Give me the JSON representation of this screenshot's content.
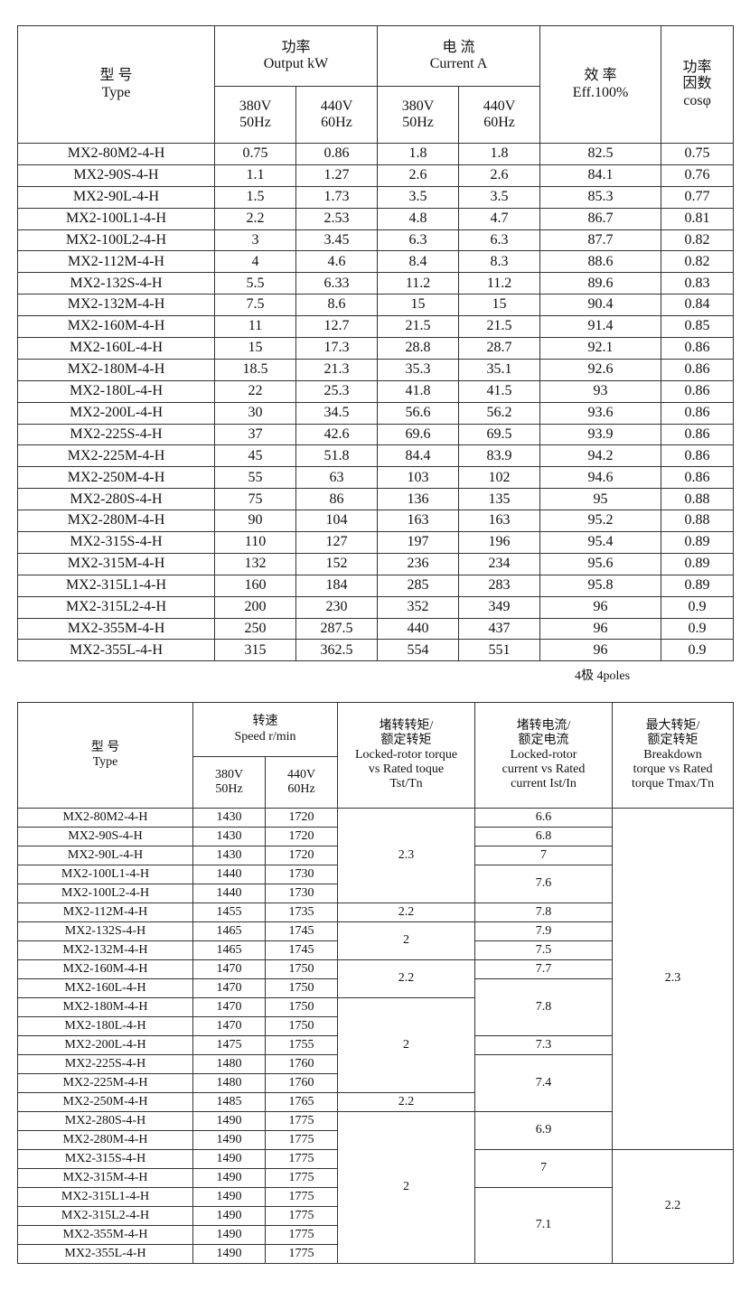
{
  "table1": {
    "headers": {
      "type": "型 号\nType",
      "output": "功率\nOutput  kW",
      "current": "电 流\nCurrent    A",
      "eff": "效 率\nEff.100%",
      "pf": "功率\n因数\ncosφ",
      "v380": "380V\n50Hz",
      "v440": "440V\n60Hz"
    },
    "rows": [
      [
        "MX2-80M2-4-H",
        "0.75",
        "0.86",
        "1.8",
        "1.8",
        "82.5",
        "0.75"
      ],
      [
        "MX2-90S-4-H",
        "1.1",
        "1.27",
        "2.6",
        "2.6",
        "84.1",
        "0.76"
      ],
      [
        "MX2-90L-4-H",
        "1.5",
        "1.73",
        "3.5",
        "3.5",
        "85.3",
        "0.77"
      ],
      [
        "MX2-100L1-4-H",
        "2.2",
        "2.53",
        "4.8",
        "4.7",
        "86.7",
        "0.81"
      ],
      [
        "MX2-100L2-4-H",
        "3",
        "3.45",
        "6.3",
        "6.3",
        "87.7",
        "0.82"
      ],
      [
        "MX2-112M-4-H",
        "4",
        "4.6",
        "8.4",
        "8.3",
        "88.6",
        "0.82"
      ],
      [
        "MX2-132S-4-H",
        "5.5",
        "6.33",
        "11.2",
        "11.2",
        "89.6",
        "0.83"
      ],
      [
        "MX2-132M-4-H",
        "7.5",
        "8.6",
        "15",
        "15",
        "90.4",
        "0.84"
      ],
      [
        "MX2-160M-4-H",
        "11",
        "12.7",
        "21.5",
        "21.5",
        "91.4",
        "0.85"
      ],
      [
        "MX2-160L-4-H",
        "15",
        "17.3",
        "28.8",
        "28.7",
        "92.1",
        "0.86"
      ],
      [
        "MX2-180M-4-H",
        "18.5",
        "21.3",
        "35.3",
        "35.1",
        "92.6",
        "0.86"
      ],
      [
        "MX2-180L-4-H",
        "22",
        "25.3",
        "41.8",
        "41.5",
        "93",
        "0.86"
      ],
      [
        "MX2-200L-4-H",
        "30",
        "34.5",
        "56.6",
        "56.2",
        "93.6",
        "0.86"
      ],
      [
        "MX2-225S-4-H",
        "37",
        "42.6",
        "69.6",
        "69.5",
        "93.9",
        "0.86"
      ],
      [
        "MX2-225M-4-H",
        "45",
        "51.8",
        "84.4",
        "83.9",
        "94.2",
        "0.86"
      ],
      [
        "MX2-250M-4-H",
        "55",
        "63",
        "103",
        "102",
        "94.6",
        "0.86"
      ],
      [
        "MX2-280S-4-H",
        "75",
        "86",
        "136",
        "135",
        "95",
        "0.88"
      ],
      [
        "MX2-280M-4-H",
        "90",
        "104",
        "163",
        "163",
        "95.2",
        "0.88"
      ],
      [
        "MX2-315S-4-H",
        "110",
        "127",
        "197",
        "196",
        "95.4",
        "0.89"
      ],
      [
        "MX2-315M-4-H",
        "132",
        "152",
        "236",
        "234",
        "95.6",
        "0.89"
      ],
      [
        "MX2-315L1-4-H",
        "160",
        "184",
        "285",
        "283",
        "95.8",
        "0.89"
      ],
      [
        "MX2-315L2-4-H",
        "200",
        "230",
        "352",
        "349",
        "96",
        "0.9"
      ],
      [
        "MX2-355M-4-H",
        "250",
        "287.5",
        "440",
        "437",
        "96",
        "0.9"
      ],
      [
        "MX2-355L-4-H",
        "315",
        "362.5",
        "554",
        "551",
        "96",
        "0.9"
      ]
    ]
  },
  "caption": "4极  4poles",
  "table2": {
    "headers": {
      "type": "型 号\nType",
      "speed": "转速\nSpeed r/min",
      "tst": "堵转转矩/\n额定转矩\nLocked-rotor torque\nvs Rated toque\nTst/Tn",
      "ist": "堵转电流/\n额定电流\nLocked-rotor\ncurrent vs Rated\ncurrent Ist/In",
      "tmax": "最大转矩/\n额定转矩\nBreakdown\ntorque vs Rated\ntorque Tmax/Tn",
      "v380": "380V\n50Hz",
      "v440": "440V\n60Hz"
    },
    "rows": [
      [
        "MX2-80M2-4-H",
        "1430",
        "1720"
      ],
      [
        "MX2-90S-4-H",
        "1430",
        "1720"
      ],
      [
        "MX2-90L-4-H",
        "1430",
        "1720"
      ],
      [
        "MX2-100L1-4-H",
        "1440",
        "1730"
      ],
      [
        "MX2-100L2-4-H",
        "1440",
        "1730"
      ],
      [
        "MX2-112M-4-H",
        "1455",
        "1735"
      ],
      [
        "MX2-132S-4-H",
        "1465",
        "1745"
      ],
      [
        "MX2-132M-4-H",
        "1465",
        "1745"
      ],
      [
        "MX2-160M-4-H",
        "1470",
        "1750"
      ],
      [
        "MX2-160L-4-H",
        "1470",
        "1750"
      ],
      [
        "MX2-180M-4-H",
        "1470",
        "1750"
      ],
      [
        "MX2-180L-4-H",
        "1470",
        "1750"
      ],
      [
        "MX2-200L-4-H",
        "1475",
        "1755"
      ],
      [
        "MX2-225S-4-H",
        "1480",
        "1760"
      ],
      [
        "MX2-225M-4-H",
        "1480",
        "1760"
      ],
      [
        "MX2-250M-4-H",
        "1485",
        "1765"
      ],
      [
        "MX2-280S-4-H",
        "1490",
        "1775"
      ],
      [
        "MX2-280M-4-H",
        "1490",
        "1775"
      ],
      [
        "MX2-315S-4-H",
        "1490",
        "1775"
      ],
      [
        "MX2-315M-4-H",
        "1490",
        "1775"
      ],
      [
        "MX2-315L1-4-H",
        "1490",
        "1775"
      ],
      [
        "MX2-315L2-4-H",
        "1490",
        "1775"
      ],
      [
        "MX2-355M-4-H",
        "1490",
        "1775"
      ],
      [
        "MX2-355L-4-H",
        "1490",
        "1775"
      ]
    ],
    "tst_groups": [
      {
        "value": "2.3",
        "rows": 5
      },
      {
        "value": "2.2",
        "rows": 1
      },
      {
        "value": "2",
        "rows": 2
      },
      {
        "value": "2.2",
        "rows": 2
      },
      {
        "value": "2",
        "rows": 5
      },
      {
        "value": "2.2",
        "rows": 1
      },
      {
        "value": "2",
        "rows": 8
      }
    ],
    "ist_groups": [
      {
        "value": "6.6",
        "rows": 1
      },
      {
        "value": "6.8",
        "rows": 1
      },
      {
        "value": "7",
        "rows": 1
      },
      {
        "value": "7.6",
        "rows": 2
      },
      {
        "value": "7.8",
        "rows": 1
      },
      {
        "value": "7.9",
        "rows": 1
      },
      {
        "value": "7.5",
        "rows": 1
      },
      {
        "value": "7.7",
        "rows": 1
      },
      {
        "value": "7.8",
        "rows": 3
      },
      {
        "value": "7.3",
        "rows": 1
      },
      {
        "value": "7.4",
        "rows": 3
      },
      {
        "value": "6.9",
        "rows": 2
      },
      {
        "value": "7",
        "rows": 2
      },
      {
        "value": "7.1",
        "rows": 4
      }
    ],
    "tmax_groups": [
      {
        "value": "2.3",
        "rows": 18
      },
      {
        "value": "2.2",
        "rows": 6
      }
    ]
  }
}
